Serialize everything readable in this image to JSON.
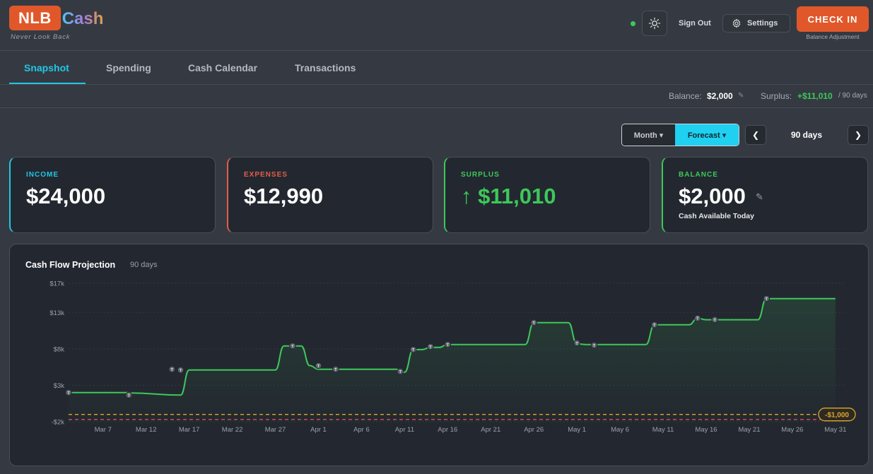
{
  "header": {
    "logo_main": "NLB",
    "logo_accent": "Cash",
    "tagline": "Never Look Back",
    "sign_out": "Sign Out",
    "settings": "Settings",
    "check_in": "CHECK IN",
    "check_in_sub": "Balance Adjustment",
    "status_color": "#3ec85a"
  },
  "tabs": [
    {
      "label": "Snapshot",
      "active": true
    },
    {
      "label": "Spending",
      "active": false
    },
    {
      "label": "Cash Calendar",
      "active": false
    },
    {
      "label": "Transactions",
      "active": false
    }
  ],
  "strip": {
    "balance_label": "Balance:",
    "balance_value": "$2,000",
    "surplus_label": "Surplus:",
    "surplus_value": "+$11,010",
    "surplus_days": "/ 90 days"
  },
  "controls": {
    "month": "Month ▾",
    "forecast": "Forecast ▾",
    "prev": "❮",
    "next": "❯",
    "days": "90 days"
  },
  "cards": {
    "income": {
      "label": "INCOME",
      "value": "$24,000"
    },
    "expenses": {
      "label": "EXPENSES",
      "value": "$12,990"
    },
    "surplus": {
      "label": "SURPLUS",
      "value": "↑ $11,010"
    },
    "balance": {
      "label": "BALANCE",
      "value": "$2,000",
      "sub": "Cash Available Today"
    }
  },
  "chart": {
    "title": "Cash Flow Projection",
    "subtitle": "90 days",
    "threshold_label": "-$1,000"
  },
  "chart_data": {
    "type": "line",
    "title": "Cash Flow Projection",
    "y_ticks": [
      "$17k",
      "$13k",
      "$8k",
      "$3k",
      "-$2k"
    ],
    "y_tick_values": [
      17000,
      13000,
      8000,
      3000,
      -2000
    ],
    "ylim": [
      -2000,
      17000
    ],
    "x_ticks": [
      "Mar 7",
      "Mar 12",
      "Mar 17",
      "Mar 22",
      "Mar 27",
      "Apr 1",
      "Apr 6",
      "Apr 11",
      "Apr 16",
      "Apr 21",
      "Apr 26",
      "May 1",
      "May 6",
      "May 11",
      "May 16",
      "May 21",
      "May 26",
      "May 31"
    ],
    "x_tick_days": [
      4,
      9,
      14,
      19,
      24,
      29,
      34,
      39,
      44,
      49,
      54,
      59,
      64,
      69,
      74,
      79,
      84,
      89
    ],
    "grid": true,
    "series": [
      {
        "color": "#3ec85a",
        "points": [
          [
            0,
            2000
          ],
          [
            6.9,
            2000
          ],
          [
            7,
            1950
          ],
          [
            13,
            1650
          ],
          [
            14,
            5100
          ],
          [
            24,
            5100
          ],
          [
            25,
            8400
          ],
          [
            27,
            8400
          ],
          [
            28,
            5700
          ],
          [
            29,
            5200
          ],
          [
            38,
            5200
          ],
          [
            39,
            4800
          ],
          [
            40,
            7900
          ],
          [
            41,
            7900
          ],
          [
            42,
            8200
          ],
          [
            43,
            8200
          ],
          [
            44,
            8600
          ],
          [
            53,
            8600
          ],
          [
            54,
            11600
          ],
          [
            58,
            11600
          ],
          [
            59,
            8700
          ],
          [
            60,
            8600
          ],
          [
            67,
            8600
          ],
          [
            68,
            11300
          ],
          [
            72,
            11300
          ],
          [
            73,
            12200
          ],
          [
            74,
            12000
          ],
          [
            80,
            12000
          ],
          [
            81,
            14900
          ],
          [
            89,
            14900
          ]
        ],
        "markers": [
          [
            0,
            2000
          ],
          [
            7,
            1650
          ],
          [
            12,
            5200
          ],
          [
            13,
            5100
          ],
          [
            26,
            8400
          ],
          [
            29,
            5700
          ],
          [
            31,
            5200
          ],
          [
            38.5,
            4900
          ],
          [
            40,
            7900
          ],
          [
            42,
            8300
          ],
          [
            44,
            8600
          ],
          [
            54,
            11600
          ],
          [
            59,
            8800
          ],
          [
            61,
            8500
          ],
          [
            68,
            11300
          ],
          [
            73,
            12200
          ],
          [
            75,
            12000
          ],
          [
            81,
            14900
          ]
        ],
        "marker_label": "T"
      }
    ],
    "reference_lines": [
      {
        "value": -1000,
        "color": "#e0a62a",
        "style": "dashed",
        "label": "-$1,000"
      },
      {
        "value": -1700,
        "color": "#e35d4a",
        "style": "dashed"
      }
    ]
  }
}
